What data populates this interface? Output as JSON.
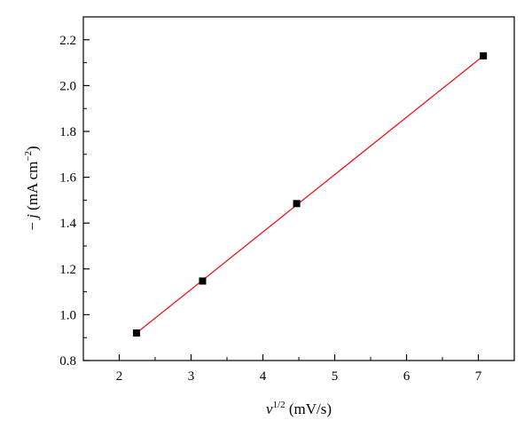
{
  "chart_data": {
    "type": "scatter",
    "title": "",
    "xlabel": {
      "symbol": "v",
      "superscript": "1/2",
      "unit": " (mV/s)"
    },
    "ylabel": {
      "prefix": "− ",
      "symbol": "j",
      "unit": " (mA cm",
      "superscript": "−2",
      "suffix": ")"
    },
    "xlim": [
      1.5,
      7.5
    ],
    "ylim": [
      0.8,
      2.3
    ],
    "x_ticks": [
      2,
      3,
      4,
      5,
      6,
      7
    ],
    "y_ticks": [
      0.8,
      1.0,
      1.2,
      1.4,
      1.6,
      1.8,
      2.0,
      2.2
    ],
    "x_tick_labels": [
      "2",
      "3",
      "4",
      "5",
      "6",
      "7"
    ],
    "y_tick_labels": [
      "0.8",
      "1.0",
      "1.2",
      "1.4",
      "1.6",
      "1.8",
      "2.0",
      "2.2"
    ],
    "series": [
      {
        "x": [
          2.24,
          3.16,
          4.47,
          7.07
        ],
        "y": [
          0.92,
          1.147,
          1.485,
          2.13
        ],
        "marker": "square",
        "marker_color": "#000000"
      }
    ],
    "fit_line": {
      "x": [
        2.24,
        7.07
      ],
      "y": [
        0.92,
        2.13
      ],
      "color": "#e8141c"
    },
    "grid": false,
    "legend": "none"
  }
}
